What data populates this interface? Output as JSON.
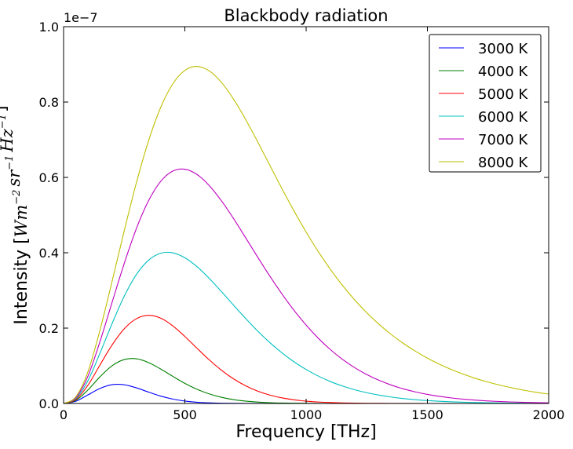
{
  "chart_data": {
    "type": "line",
    "title": "Blackbody radiation",
    "xlabel": "Frequency [THz]",
    "ylabel": {
      "text": "Intensity [",
      "math_parts": [
        {
          "base": "Wm",
          "sup": "−2"
        },
        {
          "base": "sr",
          "sup": "−1"
        },
        {
          "base": "Hz",
          "sup": "−1"
        }
      ],
      "close": "]"
    },
    "y_offset_label": "1e−7",
    "xlim": [
      0,
      2000
    ],
    "ylim": [
      0,
      1.0
    ],
    "y_scale_factor": 1e-07,
    "xticks": [
      0,
      500,
      1000,
      1500,
      2000
    ],
    "xtick_labels": [
      "0",
      "500",
      "1000",
      "1500",
      "2000"
    ],
    "yticks": [
      0,
      0.2,
      0.4,
      0.6,
      0.8,
      1.0
    ],
    "ytick_labels": [
      "0.0",
      "0.2",
      "0.4",
      "0.6",
      "0.8",
      "1.0"
    ],
    "grid": false,
    "legend_position": "top-right",
    "x": [
      0,
      50,
      100,
      150,
      200,
      250,
      300,
      350,
      400,
      450,
      500,
      550,
      600,
      650,
      700,
      750,
      800,
      850,
      900,
      950,
      1000,
      1050,
      1100,
      1150,
      1200,
      1250,
      1300,
      1350,
      1400,
      1450,
      1500,
      1550,
      1600,
      1650,
      1700,
      1750,
      1800,
      1850,
      1900,
      1950,
      2000
    ],
    "series": [
      {
        "name": "3000 K",
        "color": "#0000ff",
        "values": [
          0,
          0.0058,
          0.0226,
          0.0399,
          0.0499,
          0.0496,
          0.0415,
          0.0302,
          0.0196,
          0.0117,
          0.0064,
          0.0033,
          0.0016,
          0.0007,
          0.0003,
          0.0001,
          0.0001,
          0,
          0,
          0,
          0,
          0,
          0,
          0,
          0,
          0,
          0,
          0,
          0,
          0,
          0,
          0,
          0,
          0,
          0,
          0,
          0,
          0,
          0,
          0,
          0
        ]
      },
      {
        "name": "4000 K",
        "color": "#008000",
        "values": [
          0,
          0.0081,
          0.0356,
          0.0707,
          0.1001,
          0.1165,
          0.1186,
          0.1087,
          0.0916,
          0.072,
          0.0534,
          0.0377,
          0.0255,
          0.0165,
          0.0103,
          0.0063,
          0.0037,
          0.0021,
          0.0012,
          0.0007,
          0.0004,
          0.0002,
          0.0001,
          0.0001,
          0,
          0,
          0,
          0,
          0,
          0,
          0,
          0,
          0,
          0,
          0,
          0,
          0,
          0,
          0,
          0,
          0
        ]
      },
      {
        "name": "5000 K",
        "color": "#ff0000",
        "values": [
          0,
          0.0104,
          0.048,
          0.1021,
          0.1553,
          0.1982,
          0.2249,
          0.2339,
          0.2265,
          0.2062,
          0.1779,
          0.1466,
          0.1161,
          0.0887,
          0.0656,
          0.0471,
          0.0329,
          0.0224,
          0.0149,
          0.0097,
          0.0062,
          0.0039,
          0.0024,
          0.0015,
          0.0009,
          0.0005,
          0.0003,
          0.0002,
          0.0001,
          0.0001,
          0,
          0,
          0,
          0,
          0,
          0,
          0,
          0,
          0,
          0,
          0
        ]
      },
      {
        "name": "6000 K",
        "color": "#00bfbf",
        "values": [
          0,
          0.0127,
          0.06,
          0.1334,
          0.2123,
          0.2846,
          0.3421,
          0.3801,
          0.3987,
          0.3999,
          0.3867,
          0.3631,
          0.3324,
          0.2976,
          0.2615,
          0.226,
          0.1925,
          0.1619,
          0.1346,
          0.1107,
          0.0902,
          0.0728,
          0.0582,
          0.0463,
          0.0365,
          0.0286,
          0.0223,
          0.0172,
          0.0132,
          0.0101,
          0.0077,
          0.0058,
          0.0044,
          0.0033,
          0.0024,
          0.0018,
          0.0013,
          0.001,
          0.0007,
          0.0005,
          0.0004
        ]
      },
      {
        "name": "7000 K",
        "color": "#bf00bf",
        "values": [
          0,
          0.015,
          0.0719,
          0.1641,
          0.2684,
          0.3715,
          0.4639,
          0.5377,
          0.5892,
          0.6166,
          0.6217,
          0.6078,
          0.5787,
          0.5386,
          0.4915,
          0.4405,
          0.3887,
          0.3384,
          0.2909,
          0.2473,
          0.208,
          0.1733,
          0.143,
          0.1171,
          0.0952,
          0.0768,
          0.0616,
          0.0491,
          0.0389,
          0.0307,
          0.0241,
          0.0188,
          0.0146,
          0.0113,
          0.0087,
          0.0067,
          0.0051,
          0.0039,
          0.003,
          0.0022,
          0.0017
        ]
      },
      {
        "name": "8000 K",
        "color": "#bfbf00",
        "values": [
          0,
          0.0173,
          0.0834,
          0.1945,
          0.3243,
          0.4582,
          0.5854,
          0.6965,
          0.7851,
          0.8479,
          0.8839,
          0.8946,
          0.8829,
          0.8527,
          0.8085,
          0.7545,
          0.6947,
          0.6325,
          0.5706,
          0.5111,
          0.455,
          0.4032,
          0.3559,
          0.3133,
          0.275,
          0.2408,
          0.2105,
          0.1836,
          0.1599,
          0.1389,
          0.1204,
          0.1041,
          0.0898,
          0.0773,
          0.0663,
          0.0567,
          0.0484,
          0.0412,
          0.0349,
          0.0295,
          0.0249
        ]
      }
    ]
  }
}
